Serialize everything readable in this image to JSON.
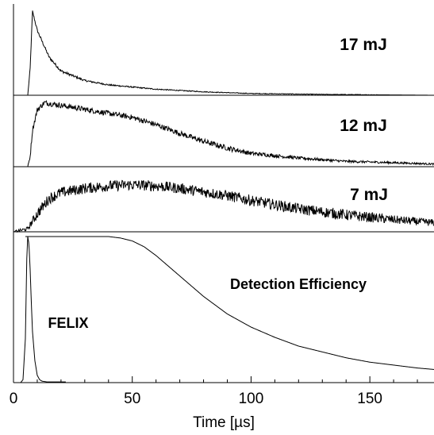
{
  "chart_data": {
    "type": "line",
    "xlabel": "Time [µs]",
    "xlim": [
      0,
      177
    ],
    "x_ticks": [
      0,
      50,
      100,
      150
    ],
    "panels": [
      {
        "label": "17 mJ",
        "series": [
          {
            "x": [
              0,
              6,
              7,
              8,
              10,
              15,
              20,
              30,
              40,
              60,
              80,
              100,
              130,
              177
            ],
            "y": [
              0,
              0,
              0.3,
              0.97,
              0.75,
              0.44,
              0.28,
              0.17,
              0.12,
              0.07,
              0.04,
              0.02,
              0.01,
              0.0
            ]
          }
        ]
      },
      {
        "label": "12 mJ",
        "series": [
          {
            "x": [
              0,
              6,
              7,
              8,
              10,
              13,
              20,
              30,
              40,
              50,
              60,
              70,
              80,
              90,
              100,
              120,
              140,
              160,
              177
            ],
            "y": [
              0,
              0,
              0.15,
              0.55,
              0.85,
              0.96,
              0.92,
              0.86,
              0.8,
              0.74,
              0.63,
              0.5,
              0.38,
              0.28,
              0.2,
              0.13,
              0.08,
              0.06,
              0.04
            ]
          }
        ]
      },
      {
        "label": "7 mJ",
        "series": [
          {
            "x": [
              0,
              6,
              10,
              15,
              20,
              30,
              40,
              50,
              60,
              70,
              80,
              90,
              100,
              110,
              120,
              140,
              160,
              177
            ],
            "y": [
              0,
              0.05,
              0.3,
              0.55,
              0.65,
              0.72,
              0.76,
              0.78,
              0.76,
              0.72,
              0.66,
              0.6,
              0.52,
              0.45,
              0.38,
              0.28,
              0.2,
              0.15
            ]
          }
        ]
      },
      {
        "label": "FELIX",
        "series": [
          {
            "name": "FELIX",
            "x": [
              0,
              3,
              4,
              5,
              5.6,
              6,
              6.5,
              7,
              7.5,
              8,
              9,
              10,
              11,
              12,
              14,
              22
            ],
            "y": [
              0,
              0,
              0.02,
              0.3,
              0.85,
              1.0,
              0.95,
              0.78,
              0.55,
              0.35,
              0.15,
              0.05,
              0.02,
              0.01,
              0.005,
              0.005
            ]
          },
          {
            "name": "Detection Efficiency",
            "x": [
              5,
              40,
              45,
              50,
              55,
              60,
              70,
              80,
              90,
              100,
              110,
              120,
              130,
              140,
              150,
              160,
              170,
              177
            ],
            "y": [
              1.0,
              1.0,
              0.99,
              0.97,
              0.93,
              0.87,
              0.73,
              0.59,
              0.47,
              0.38,
              0.31,
              0.25,
              0.21,
              0.17,
              0.14,
              0.12,
              0.1,
              0.09
            ]
          }
        ],
        "annotations": [
          "FELIX",
          "Detection Efficiency"
        ]
      }
    ]
  }
}
